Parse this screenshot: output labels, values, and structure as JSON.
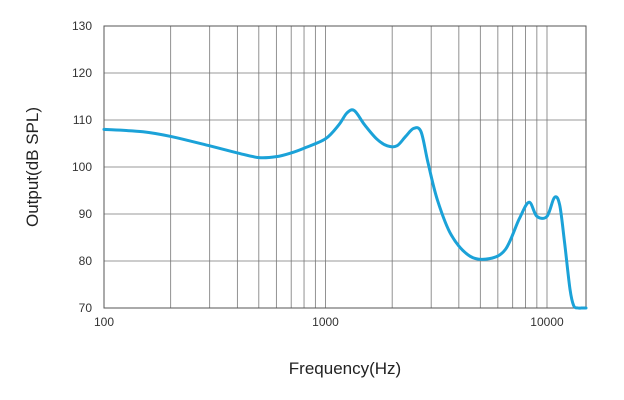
{
  "chart_data": {
    "type": "line",
    "xlabel": "Frequency(Hz)",
    "ylabel": "Output(dB SPL)",
    "x_scale": "log",
    "xlim": [
      100,
      15000
    ],
    "ylim": [
      70,
      130
    ],
    "y_ticks": [
      70,
      80,
      90,
      100,
      110,
      120,
      130
    ],
    "y_tick_labels": [
      "70",
      "80",
      "90",
      "100",
      "110",
      "120",
      "130"
    ],
    "x_ticks": [
      100,
      1000,
      10000
    ],
    "x_tick_labels": [
      "100",
      "1000",
      "10000"
    ],
    "grid": true,
    "series_color": "#1ba2d8",
    "series": [
      {
        "x": [
          100,
          150,
          200,
          300,
          400,
          500,
          600,
          700,
          800,
          1000,
          1150,
          1250,
          1350,
          1500,
          1700,
          1900,
          2100,
          2300,
          2500,
          2700,
          2900,
          3200,
          3700,
          4500,
          5500,
          6500,
          7500,
          8300,
          9000,
          10000,
          10800,
          11400,
          12000,
          12700,
          13200,
          13800,
          14300,
          14700,
          15000
        ],
        "y": [
          108,
          107.5,
          106.5,
          104.5,
          103,
          102,
          102.2,
          103,
          104,
          106,
          109,
          111.5,
          112,
          109,
          106,
          104.5,
          104.5,
          106.5,
          108.2,
          107.5,
          101,
          93,
          85.5,
          81,
          80.5,
          82.5,
          89,
          92.5,
          89.5,
          89.5,
          93.5,
          92,
          84,
          74,
          70.5,
          70,
          70,
          70,
          70
        ]
      }
    ]
  }
}
